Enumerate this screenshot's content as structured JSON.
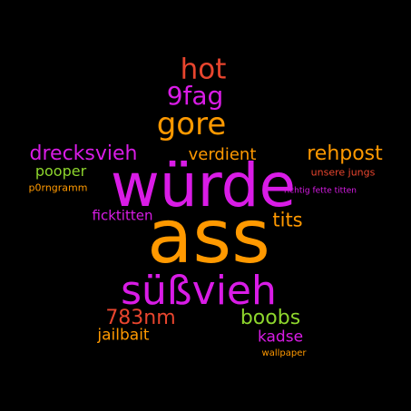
{
  "colors": {
    "background": "#000000",
    "magenta": "#d91ce6",
    "orange": "#ff9900",
    "red": "#e8452e",
    "green": "#8ed62d"
  },
  "words": {
    "huerde": {
      "text": "würde",
      "color": "#d91ce6"
    },
    "ass": {
      "text": "ass",
      "color": "#ff9900"
    },
    "suessvieh": {
      "text": "süßvieh",
      "color": "#d91ce6"
    },
    "gore": {
      "text": "gore",
      "color": "#ff9900"
    },
    "hot": {
      "text": "hot",
      "color": "#e8452e"
    },
    "fag": {
      "text": "9fag",
      "color": "#d91ce6"
    },
    "drecksvieh": {
      "text": "drecksvieh",
      "color": "#d91ce6"
    },
    "verdient": {
      "text": "verdient",
      "color": "#ff9900"
    },
    "rehpost": {
      "text": "rehpost",
      "color": "#ff9900"
    },
    "pooper": {
      "text": "pooper",
      "color": "#8ed62d"
    },
    "unsere_jungs": {
      "text": "unsere jungs",
      "color": "#e8452e"
    },
    "p0rngramm": {
      "text": "p0rngramm",
      "color": "#ff9900"
    },
    "richtig_fette_titten": {
      "text": "richtig fette titten",
      "color": "#d91ce6"
    },
    "ficktitten": {
      "text": "ficktitten",
      "color": "#d91ce6"
    },
    "tits": {
      "text": "tits",
      "color": "#ff9900"
    },
    "nm783": {
      "text": "783nm",
      "color": "#e8452e"
    },
    "boobs": {
      "text": "boobs",
      "color": "#8ed62d"
    },
    "jailbait": {
      "text": "jailbait",
      "color": "#ff9900"
    },
    "kadse": {
      "text": "kadse",
      "color": "#d91ce6"
    },
    "wallpaper": {
      "text": "wallpaper",
      "color": "#ff9900"
    }
  }
}
